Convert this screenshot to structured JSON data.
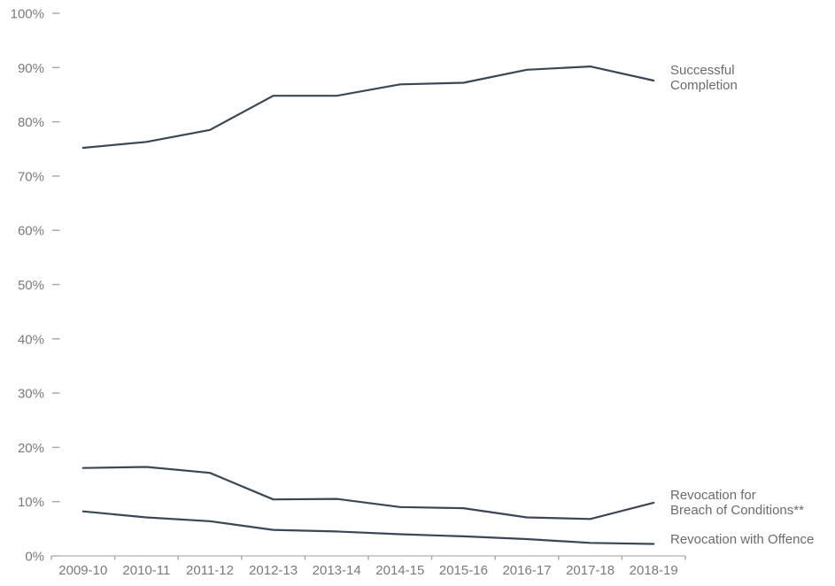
{
  "chart_data": {
    "type": "line",
    "title": "",
    "categories": [
      "2009-10",
      "2010-11",
      "2011-12",
      "2012-13",
      "2013-14",
      "2014-15",
      "2015-16",
      "2016-17",
      "2017-18",
      "2018-19"
    ],
    "series": [
      {
        "id": "successful-completion",
        "name": "Successful Completion",
        "label_lines": {
          "0": "Successful",
          "1": "Completion"
        },
        "values": [
          75.2,
          76.3,
          78.5,
          84.8,
          84.8,
          86.9,
          87.2,
          89.6,
          90.2,
          87.6
        ]
      },
      {
        "id": "revocation-breach-of-conditions",
        "name": "Revocation for Breach of Conditions**",
        "label_lines": {
          "0": "Revocation for",
          "1": "Breach of Conditions**"
        },
        "values": [
          16.2,
          16.4,
          15.3,
          10.4,
          10.5,
          9.0,
          8.8,
          7.1,
          6.8,
          9.8
        ]
      },
      {
        "id": "revocation-with-offence",
        "name": "Revocation with Offence",
        "label_lines": {
          "0": "Revocation with Offence"
        },
        "values": [
          8.2,
          7.1,
          6.4,
          4.8,
          4.5,
          4.0,
          3.6,
          3.1,
          2.4,
          2.2
        ]
      }
    ],
    "xlabel": "",
    "ylabel": "",
    "ylim": [
      0,
      100
    ],
    "ytick_step": 10,
    "ytick_labels": [
      "0%",
      "10%",
      "20%",
      "30%",
      "40%",
      "50%",
      "60%",
      "70%",
      "80%",
      "90%",
      "100%"
    ],
    "grid": false,
    "legend_position": "right-end-of-lines",
    "colors": {
      "line": "#3a4757",
      "axis_line": "#bfbfbf",
      "tick": "#a6a6a6",
      "axis_text": "#7a7a7a",
      "series_label_text": "#6b6b6b",
      "background": "#ffffff"
    }
  }
}
